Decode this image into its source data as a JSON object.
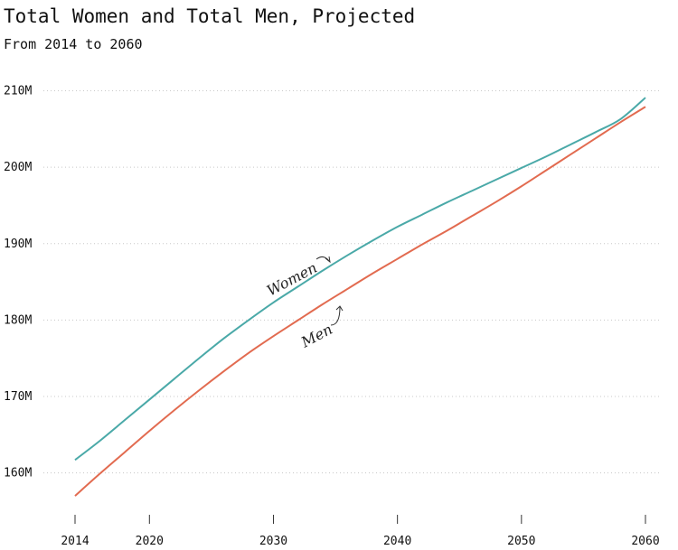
{
  "chart_data": {
    "type": "line",
    "title": "Total Women and Total Men, Projected",
    "subtitle": "From 2014 to 2060",
    "xlabel": "",
    "ylabel": "",
    "xlim": [
      2014,
      2060
    ],
    "ylim": [
      155,
      211
    ],
    "x_ticks": [
      2014,
      2020,
      2030,
      2040,
      2050,
      2060
    ],
    "y_ticks": [
      160,
      170,
      180,
      190,
      200,
      210
    ],
    "y_tick_labels": [
      "160M",
      "170M",
      "180M",
      "190M",
      "200M",
      "210M"
    ],
    "grid": true,
    "legend": "none",
    "series": [
      {
        "name": "Women",
        "color": "#4aa9a8",
        "x": [
          2014,
          2016,
          2018,
          2020,
          2022,
          2024,
          2026,
          2028,
          2030,
          2032,
          2034,
          2036,
          2038,
          2040,
          2042,
          2044,
          2046,
          2048,
          2050,
          2052,
          2054,
          2056,
          2058,
          2060
        ],
        "values": [
          161.7,
          164.2,
          166.9,
          169.6,
          172.3,
          175.0,
          177.6,
          180.0,
          182.3,
          184.4,
          186.5,
          188.5,
          190.4,
          192.2,
          193.8,
          195.4,
          196.9,
          198.4,
          199.9,
          201.4,
          203.0,
          204.6,
          206.3,
          209.1
        ]
      },
      {
        "name": "Men",
        "color": "#e26b50",
        "x": [
          2014,
          2016,
          2018,
          2020,
          2022,
          2024,
          2026,
          2028,
          2030,
          2032,
          2034,
          2036,
          2038,
          2040,
          2042,
          2044,
          2046,
          2048,
          2050,
          2052,
          2054,
          2056,
          2058,
          2060
        ],
        "values": [
          157.0,
          159.9,
          162.7,
          165.5,
          168.2,
          170.8,
          173.3,
          175.7,
          177.9,
          180.0,
          182.1,
          184.1,
          186.1,
          188.0,
          189.9,
          191.7,
          193.6,
          195.5,
          197.5,
          199.6,
          201.7,
          203.8,
          205.9,
          207.9
        ]
      }
    ]
  }
}
